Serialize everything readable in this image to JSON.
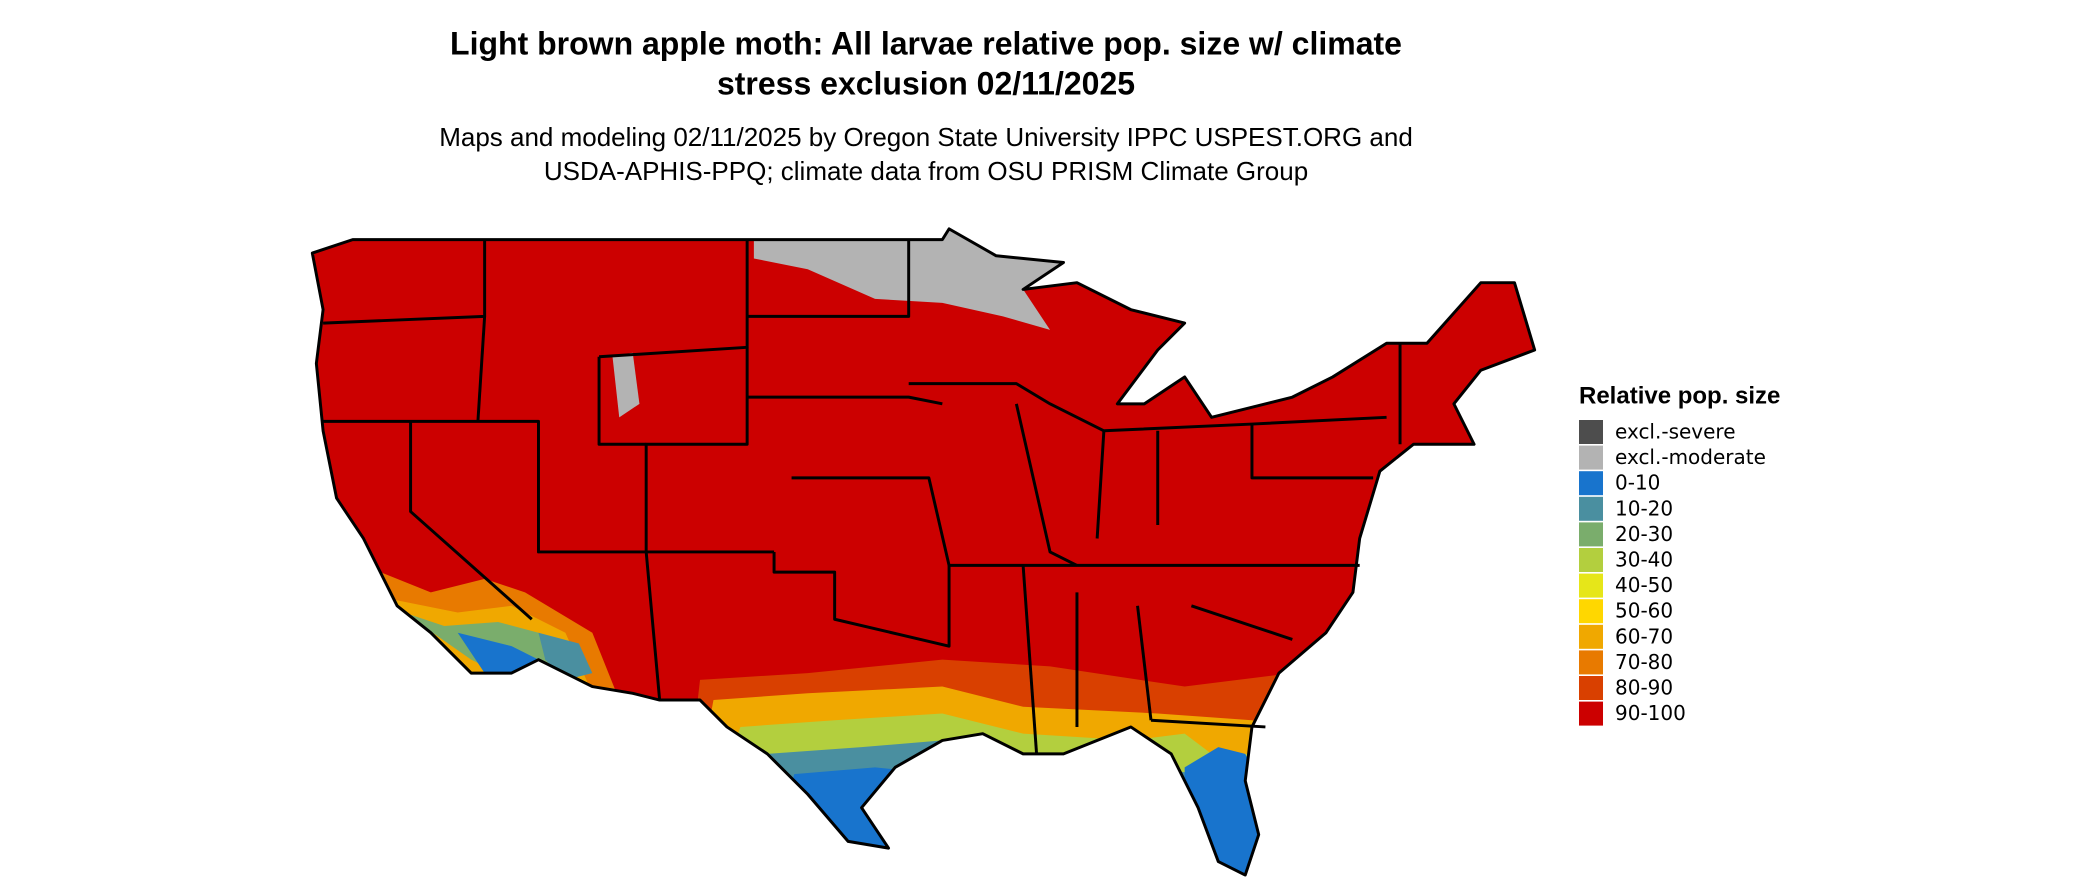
{
  "title": [
    "Light brown apple moth: All larvae relative pop. size w/ climate",
    "stress exclusion 02/11/2025"
  ],
  "subtitle": [
    "Maps and modeling 02/11/2025 by Oregon State University IPPC USPEST.ORG and",
    "USDA-APHIS-PPQ; climate data from OSU PRISM Climate Group"
  ],
  "legend": {
    "title": "Relative pop. size",
    "items": [
      {
        "label": "excl.-severe",
        "color": "#4d4d4d"
      },
      {
        "label": "excl.-moderate",
        "color": "#b3b3b3"
      },
      {
        "label": "0-10",
        "color": "#1874cd"
      },
      {
        "label": "10-20",
        "color": "#4a8fa0"
      },
      {
        "label": "20-30",
        "color": "#7aad6c"
      },
      {
        "label": "30-40",
        "color": "#b3cf3e"
      },
      {
        "label": "40-50",
        "color": "#e6e619"
      },
      {
        "label": "50-60",
        "color": "#ffd700"
      },
      {
        "label": "60-70",
        "color": "#f0a800"
      },
      {
        "label": "70-80",
        "color": "#e87a00"
      },
      {
        "label": "80-90",
        "color": "#d94000"
      },
      {
        "label": "90-100",
        "color": "#cc0000"
      }
    ]
  }
}
